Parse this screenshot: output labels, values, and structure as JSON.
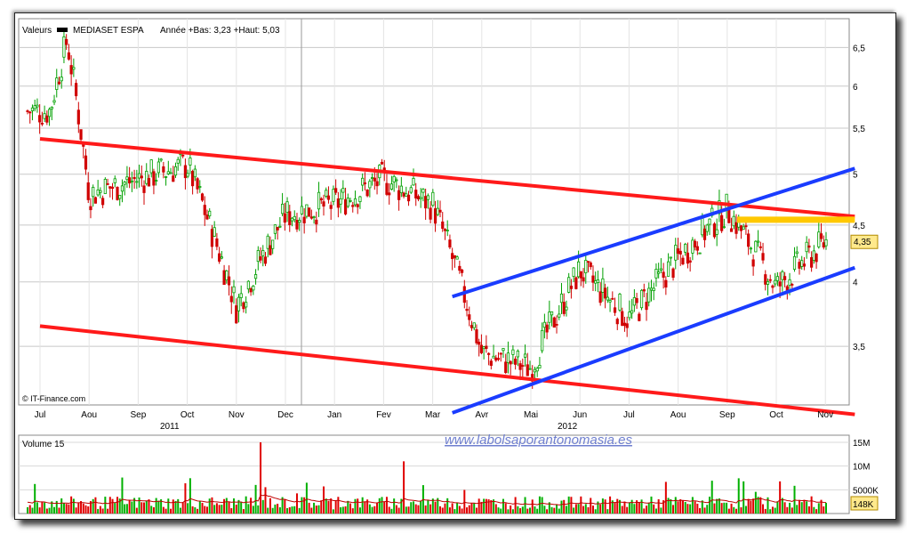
{
  "chart_data": [
    {
      "type": "candlestick",
      "header": {
        "prefix": "Valeurs",
        "series_name": "MEDIASET ESPA",
        "range_text": "Année +Bas: 3,23 +Haut: 5,03"
      },
      "y_scale": "log",
      "ylim": [
        3.1,
        6.9
      ],
      "y_ticks": [
        "6,5",
        "6",
        "5,5",
        "5",
        "4,5",
        "4",
        "3,5"
      ],
      "y_tick_values": [
        6.5,
        6.0,
        5.5,
        5.0,
        4.5,
        4.0,
        3.5
      ],
      "x_month_labels": [
        "Jul",
        "Aou",
        "Sep",
        "Oct",
        "Nov",
        "Dec",
        "Jan",
        "Fev",
        "Mar",
        "Avr",
        "Mai",
        "Jun",
        "Jul",
        "Aou",
        "Sep",
        "Oct",
        "Nov"
      ],
      "x_year_labels": [
        "2011",
        "2012"
      ],
      "last_price_label": "4,35",
      "last_price": 4.35,
      "copyright": "© IT-Finance.com",
      "key_prices": [
        {
          "month": "Jul 2011",
          "value": 5.7
        },
        {
          "month": "Jul 2011 (peak)",
          "value": 6.6
        },
        {
          "month": "Aou 2011",
          "value": 4.8
        },
        {
          "month": "Oct 2011",
          "value": 5.1
        },
        {
          "month": "Nov 2011",
          "value": 3.8
        },
        {
          "month": "Dec 2011",
          "value": 4.6
        },
        {
          "month": "Jan 2012",
          "value": 4.7
        },
        {
          "month": "Fev 2012",
          "value": 4.95
        },
        {
          "month": "Mar 2012",
          "value": 4.7
        },
        {
          "month": "Avr 2012",
          "value": 3.45
        },
        {
          "month": "Mai 2012",
          "value": 3.35
        },
        {
          "month": "Jun 2012",
          "value": 4.1
        },
        {
          "month": "Jul 2012",
          "value": 3.7
        },
        {
          "month": "Aou 2012",
          "value": 4.2
        },
        {
          "month": "Sep 2012",
          "value": 4.65
        },
        {
          "month": "Oct 2012",
          "value": 3.95
        },
        {
          "month": "Nov 2012",
          "value": 4.35
        }
      ],
      "trend_lines": [
        {
          "color": "#ff1a1a",
          "role": "upper red channel",
          "from": {
            "month": "Jul 2011",
            "value": 5.38
          },
          "to": {
            "month": "Nov 2012",
            "value": 4.58
          }
        },
        {
          "color": "#ff1a1a",
          "role": "lower red channel",
          "from": {
            "month": "Jul 2011",
            "value": 3.65
          },
          "to": {
            "month": "Nov 2012",
            "value": 3.04
          }
        },
        {
          "color": "#1a3cff",
          "role": "upper blue channel",
          "from": {
            "month": "Mar 2012",
            "value": 3.88
          },
          "to": {
            "month": "Nov 2012",
            "value": 5.06
          }
        },
        {
          "color": "#1a3cff",
          "role": "lower blue channel",
          "from": {
            "month": "Mar 2012",
            "value": 3.05
          },
          "to": {
            "month": "Nov 2012",
            "value": 4.12
          }
        },
        {
          "color": "#ffc800",
          "role": "resistance band",
          "from": {
            "month": "Sep 2012",
            "value": 4.55
          },
          "to": {
            "month": "Nov 2012",
            "value": 4.55
          }
        }
      ],
      "colors": {
        "up": "#00a000",
        "down": "#d00000",
        "grid": "#c8c8c8"
      }
    },
    {
      "type": "bar",
      "title": "Volume 15",
      "y_ticks": [
        "15M",
        "10M",
        "5000K"
      ],
      "y_tick_values": [
        15000000,
        10000000,
        5000000
      ],
      "last_value_label": "148K",
      "notable_spikes": [
        {
          "month": "Nov 2011",
          "value": 15000000
        },
        {
          "month": "Mar 2012",
          "value": 11000000
        }
      ],
      "typical_value": 2500000,
      "moving_average_color": "#c00000"
    }
  ],
  "watermark": "www.labolsaporantonomasia.es"
}
